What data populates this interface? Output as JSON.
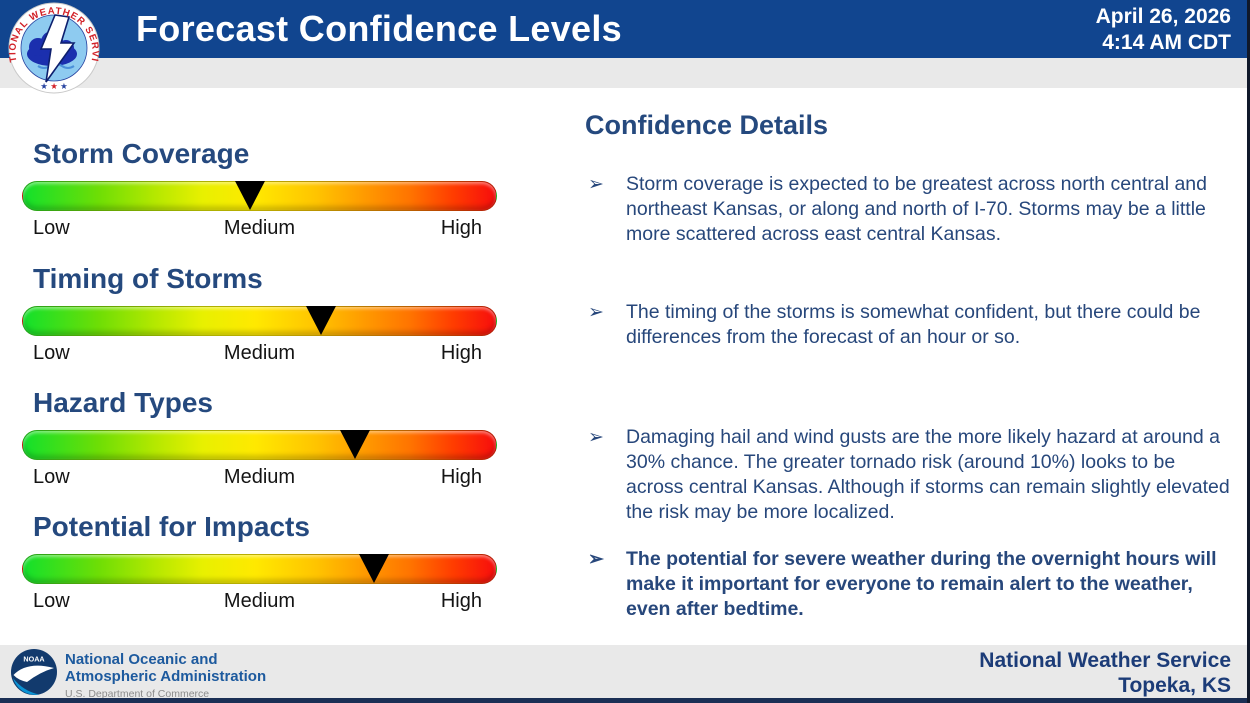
{
  "header": {
    "title": "Forecast Confidence Levels",
    "date": "April 26, 2026",
    "time": "4:14 AM CDT"
  },
  "chart_data": {
    "type": "gauge",
    "title": "Forecast Confidence Levels",
    "scale_labels": [
      "Low",
      "Medium",
      "High"
    ],
    "scale_note": "0 = Low, 50 = Medium, 100 = High",
    "categories": [
      "Storm Coverage",
      "Timing of Storms",
      "Hazard Types",
      "Potential for Impacts"
    ],
    "values_pct": [
      48,
      63,
      70,
      74
    ],
    "marker_color": "#000000",
    "gradient_colors": [
      "#12e02c",
      "#e8f000",
      "#ffe900",
      "#ff9b00",
      "#f70d0d"
    ]
  },
  "details": {
    "heading": "Confidence Details",
    "bullet_icon": "➢",
    "bullets": [
      {
        "text": "Storm coverage is expected to be greatest across north central and northeast Kansas, or along and north of I-70. Storms may be a little more scattered across east central Kansas.",
        "bold": false
      },
      {
        "text": "The timing of the storms is somewhat confident, but there could be differences from the forecast of an hour or so.",
        "bold": false
      },
      {
        "text": "Damaging hail and wind gusts are the more likely hazard at around a 30% chance. The greater tornado risk (around 10%) looks to be across central Kansas. Although if storms can remain slightly elevated the risk may be more localized.",
        "bold": false
      },
      {
        "text": "The potential for severe weather during the overnight hours will make it important for everyone to remain alert to the weather, even after bedtime.",
        "bold": true
      }
    ]
  },
  "footer": {
    "noaa_line1": "National Oceanic and",
    "noaa_line2": "Atmospheric Administration",
    "noaa_line3": "U.S. Department of Commerce",
    "office_line1": "National Weather Service",
    "office_line2": "Topeka, KS",
    "noaa_logo_text": "NOAA",
    "nws_logo_text": "NATIONAL WEATHER SERVICE"
  },
  "colors": {
    "header_bg": "#11458f",
    "heading_navy": "#25497e",
    "body_navy": "#27477b",
    "subband_gray": "#e9e9e9",
    "footer_gray": "#e9e9e9",
    "bottom_strip": "#1b2f55"
  }
}
